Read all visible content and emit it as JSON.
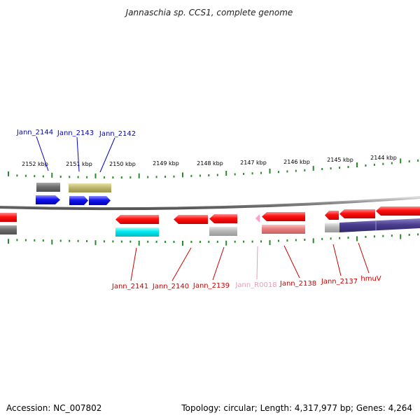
{
  "header": {
    "title": "Jannaschia sp. CCS1, complete genome"
  },
  "footer": {
    "accession": "Accession: NC_007802",
    "summary": "Topology: circular; Length: 4,317,977 bp; Genes: 4,264"
  },
  "kbp_ticks": [
    {
      "label": "2152 kbp"
    },
    {
      "label": "2151 kbp"
    },
    {
      "label": "2150 kbp"
    },
    {
      "label": "2149 kbp"
    },
    {
      "label": "2148 kbp"
    },
    {
      "label": "2147 kbp"
    },
    {
      "label": "2146 kbp"
    },
    {
      "label": "2145 kbp"
    },
    {
      "label": "2144 kbp"
    }
  ],
  "genes_forward": [
    {
      "label": "Jann_2144",
      "color": "#0000cc"
    },
    {
      "label": "Jann_2143",
      "color": "#0000cc"
    },
    {
      "label": "Jann_2142",
      "color": "#0000cc"
    }
  ],
  "genes_reverse": [
    {
      "label": "Jann_2141",
      "color": "#cc0000"
    },
    {
      "label": "Jann_2140",
      "color": "#cc0000"
    },
    {
      "label": "Jann_2139",
      "color": "#cc0000"
    },
    {
      "label": "Jann_R0018",
      "color": "#ee99bb"
    },
    {
      "label": "Jann_2138",
      "color": "#cc0000"
    },
    {
      "label": "Jann_2137",
      "color": "#cc0000"
    },
    {
      "label": "hmuV",
      "color": "#cc0000"
    }
  ],
  "colors": {
    "forward_cds": "#1010ee",
    "reverse_cds": "#ee0000",
    "rna": "#ff9ec8",
    "backbone": "#888888",
    "tick": "#2a8a2a",
    "cog_gray": "#777777",
    "cog_khaki": "#bdb76b",
    "cog_cyan": "#00e5ee",
    "cog_lightgray": "#b8b8b8",
    "cog_pink": "#e88080",
    "cog_purple": "#4a3d8f"
  }
}
